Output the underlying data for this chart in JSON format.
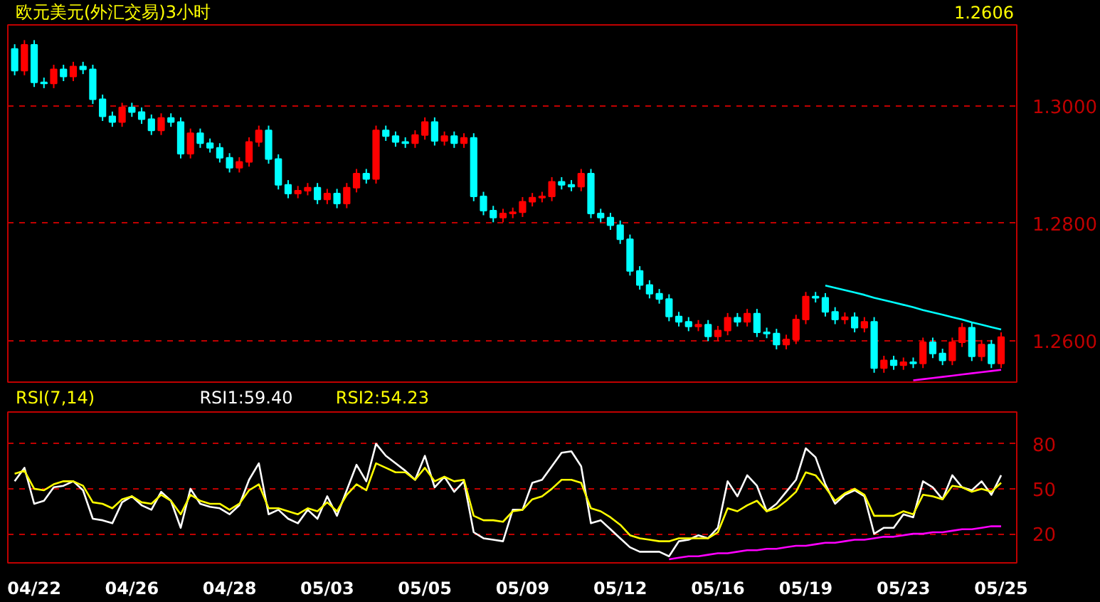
{
  "chart_data": [
    {
      "type": "candlestick",
      "title": "欧元美元(外汇交易)3小时",
      "ohlc": [
        [
          1.3098,
          1.3106,
          1.3053,
          1.3061
        ],
        [
          1.3061,
          1.3113,
          1.3053,
          1.3105
        ],
        [
          1.3105,
          1.3113,
          1.3033,
          1.3041
        ],
        [
          1.3041,
          1.3049,
          1.3031,
          1.3039
        ],
        [
          1.3039,
          1.3071,
          1.3031,
          1.3063
        ],
        [
          1.3063,
          1.3071,
          1.3043,
          1.3051
        ],
        [
          1.3051,
          1.3076,
          1.3043,
          1.3068
        ],
        [
          1.3068,
          1.3076,
          1.3055,
          1.3063
        ],
        [
          1.3063,
          1.3071,
          1.3004,
          1.3012
        ],
        [
          1.3012,
          1.302,
          1.2975,
          1.2983
        ],
        [
          1.2983,
          1.2991,
          1.2965,
          1.2973
        ],
        [
          1.2973,
          1.3006,
          1.2965,
          1.2998
        ],
        [
          1.2998,
          1.3006,
          1.2982,
          1.299
        ],
        [
          1.299,
          1.2998,
          1.297,
          1.2978
        ],
        [
          1.2978,
          1.2986,
          1.2951,
          1.2959
        ],
        [
          1.2959,
          1.2988,
          1.2951,
          1.298
        ],
        [
          1.298,
          1.2988,
          1.2965,
          1.2973
        ],
        [
          1.2973,
          1.2981,
          1.2911,
          1.2919
        ],
        [
          1.2919,
          1.2962,
          1.2911,
          1.2954
        ],
        [
          1.2954,
          1.2962,
          1.2929,
          1.2937
        ],
        [
          1.2937,
          1.2945,
          1.2921,
          1.2929
        ],
        [
          1.2929,
          1.2937,
          1.2904,
          1.2912
        ],
        [
          1.2912,
          1.292,
          1.2887,
          1.2895
        ],
        [
          1.2895,
          1.2913,
          1.2887,
          1.2905
        ],
        [
          1.2905,
          1.2947,
          1.2897,
          1.2939
        ],
        [
          1.2939,
          1.2967,
          1.2931,
          1.2959
        ],
        [
          1.2959,
          1.2967,
          1.2902,
          1.291
        ],
        [
          1.291,
          1.2918,
          1.2858,
          1.2866
        ],
        [
          1.2866,
          1.2874,
          1.2843,
          1.2851
        ],
        [
          1.2851,
          1.2864,
          1.2843,
          1.2856
        ],
        [
          1.2856,
          1.2869,
          1.2848,
          1.2861
        ],
        [
          1.2861,
          1.2869,
          1.2833,
          1.2841
        ],
        [
          1.2841,
          1.2859,
          1.2833,
          1.2851
        ],
        [
          1.2851,
          1.2859,
          1.2826,
          1.2834
        ],
        [
          1.2834,
          1.2869,
          1.2826,
          1.2861
        ],
        [
          1.2861,
          1.2893,
          1.2853,
          1.2885
        ],
        [
          1.2885,
          1.2893,
          1.2868,
          1.2876
        ],
        [
          1.2876,
          1.2967,
          1.2868,
          1.2959
        ],
        [
          1.2959,
          1.2967,
          1.2941,
          1.2949
        ],
        [
          1.2949,
          1.2957,
          1.2931,
          1.2939
        ],
        [
          1.2939,
          1.2947,
          1.2929,
          1.2937
        ],
        [
          1.2937,
          1.2959,
          1.2929,
          1.2951
        ],
        [
          1.2951,
          1.2981,
          1.2943,
          1.2973
        ],
        [
          1.2973,
          1.2981,
          1.2933,
          1.2941
        ],
        [
          1.2941,
          1.2957,
          1.2933,
          1.2949
        ],
        [
          1.2949,
          1.2957,
          1.2929,
          1.2937
        ],
        [
          1.2937,
          1.2954,
          1.2929,
          1.2946
        ],
        [
          1.2946,
          1.2954,
          1.2838,
          1.2846
        ],
        [
          1.2846,
          1.2854,
          1.2814,
          1.2822
        ],
        [
          1.2822,
          1.283,
          1.2802,
          1.281
        ],
        [
          1.281,
          1.2825,
          1.2802,
          1.2817
        ],
        [
          1.2817,
          1.2827,
          1.2809,
          1.2819
        ],
        [
          1.2819,
          1.2845,
          1.2811,
          1.2837
        ],
        [
          1.2837,
          1.2852,
          1.2829,
          1.2844
        ],
        [
          1.2844,
          1.2854,
          1.2836,
          1.2846
        ],
        [
          1.2846,
          1.2879,
          1.2838,
          1.2871
        ],
        [
          1.2871,
          1.2879,
          1.2858,
          1.2866
        ],
        [
          1.2866,
          1.2874,
          1.2855,
          1.2863
        ],
        [
          1.2863,
          1.2893,
          1.2855,
          1.2885
        ],
        [
          1.2885,
          1.2893,
          1.2809,
          1.2817
        ],
        [
          1.2817,
          1.2825,
          1.2802,
          1.281
        ],
        [
          1.281,
          1.2818,
          1.2789,
          1.2797
        ],
        [
          1.2797,
          1.2805,
          1.2765,
          1.2773
        ],
        [
          1.2773,
          1.2781,
          1.2711,
          1.2719
        ],
        [
          1.2719,
          1.2727,
          1.2687,
          1.2695
        ],
        [
          1.2695,
          1.2703,
          1.2672,
          1.268
        ],
        [
          1.268,
          1.2688,
          1.2663,
          1.2671
        ],
        [
          1.2671,
          1.2679,
          1.2633,
          1.2641
        ],
        [
          1.2641,
          1.2649,
          1.2624,
          1.2632
        ],
        [
          1.2632,
          1.264,
          1.2616,
          1.2624
        ],
        [
          1.2624,
          1.2635,
          1.2616,
          1.2627
        ],
        [
          1.2627,
          1.2635,
          1.2599,
          1.2607
        ],
        [
          1.2607,
          1.2625,
          1.2599,
          1.2617
        ],
        [
          1.2617,
          1.2647,
          1.2609,
          1.2639
        ],
        [
          1.2639,
          1.2647,
          1.2624,
          1.2632
        ],
        [
          1.2632,
          1.2654,
          1.2624,
          1.2646
        ],
        [
          1.2646,
          1.2654,
          1.2606,
          1.2614
        ],
        [
          1.2614,
          1.2622,
          1.2604,
          1.2612
        ],
        [
          1.2612,
          1.262,
          1.2585,
          1.2593
        ],
        [
          1.2593,
          1.261,
          1.2585,
          1.2602
        ],
        [
          1.2602,
          1.2644,
          1.2594,
          1.2636
        ],
        [
          1.2636,
          1.2683,
          1.2628,
          1.2675
        ],
        [
          1.2675,
          1.2683,
          1.2665,
          1.2673
        ],
        [
          1.2673,
          1.2681,
          1.2641,
          1.2649
        ],
        [
          1.2649,
          1.2657,
          1.2628,
          1.2636
        ],
        [
          1.2636,
          1.2648,
          1.2628,
          1.264
        ],
        [
          1.264,
          1.2648,
          1.2614,
          1.2622
        ],
        [
          1.2622,
          1.264,
          1.2614,
          1.2632
        ],
        [
          1.2632,
          1.264,
          1.2545,
          1.2553
        ],
        [
          1.2553,
          1.2574,
          1.2545,
          1.2566
        ],
        [
          1.2566,
          1.2574,
          1.255,
          1.2558
        ],
        [
          1.2558,
          1.2571,
          1.255,
          1.2563
        ],
        [
          1.2563,
          1.2571,
          1.2553,
          1.2561
        ],
        [
          1.2561,
          1.2605,
          1.2553,
          1.2597
        ],
        [
          1.2597,
          1.2605,
          1.257,
          1.2578
        ],
        [
          1.2578,
          1.2586,
          1.2558,
          1.2566
        ],
        [
          1.2566,
          1.2605,
          1.2558,
          1.2597
        ],
        [
          1.2597,
          1.263,
          1.2589,
          1.2622
        ],
        [
          1.2622,
          1.263,
          1.2565,
          1.2573
        ],
        [
          1.2573,
          1.2601,
          1.2565,
          1.2593
        ],
        [
          1.2593,
          1.2601,
          1.2553,
          1.2561
        ],
        [
          1.2561,
          1.2614,
          1.2553,
          1.2606
        ]
      ],
      "colors": [
        "#00ffff",
        "#ff0000",
        "#00ffff",
        "#00ffff",
        "#ff0000",
        "#00ffff",
        "#ff0000",
        "#00ffff",
        "#00ffff",
        "#00ffff",
        "#00ffff",
        "#ff0000",
        "#00ffff",
        "#00ffff",
        "#00ffff",
        "#ff0000",
        "#00ffff",
        "#00ffff",
        "#ff0000",
        "#00ffff",
        "#00ffff",
        "#00ffff",
        "#00ffff",
        "#ff0000",
        "#ff0000",
        "#ff0000",
        "#00ffff",
        "#00ffff",
        "#00ffff",
        "#ff0000",
        "#ff0000",
        "#00ffff",
        "#ff0000",
        "#00ffff",
        "#ff0000",
        "#ff0000",
        "#00ffff",
        "#ff0000",
        "#00ffff",
        "#00ffff",
        "#00ffff",
        "#ff0000",
        "#ff0000",
        "#00ffff",
        "#ff0000",
        "#00ffff",
        "#ff0000",
        "#00ffff",
        "#00ffff",
        "#00ffff",
        "#ff0000",
        "#ff0000",
        "#ff0000",
        "#ff0000",
        "#ff0000",
        "#ff0000",
        "#00ffff",
        "#00ffff",
        "#ff0000",
        "#00ffff",
        "#00ffff",
        "#00ffff",
        "#00ffff",
        "#00ffff",
        "#00ffff",
        "#00ffff",
        "#00ffff",
        "#00ffff",
        "#00ffff",
        "#00ffff",
        "#ff0000",
        "#00ffff",
        "#ff0000",
        "#ff0000",
        "#00ffff",
        "#ff0000",
        "#00ffff",
        "#00ffff",
        "#00ffff",
        "#ff0000",
        "#ff0000",
        "#ff0000",
        "#00ffff",
        "#00ffff",
        "#00ffff",
        "#ff0000",
        "#00ffff",
        "#ff0000",
        "#00ffff",
        "#ff0000",
        "#00ffff",
        "#ff0000",
        "#00ffff",
        "#ff0000",
        "#00ffff",
        "#00ffff",
        "#ff0000",
        "#ff0000",
        "#00ffff",
        "#ff0000",
        "#00ffff",
        "#ff0000"
      ],
      "series": [
        {
          "type": "line",
          "color": "#00ffff",
          "values": [
            null,
            null,
            null,
            null,
            null,
            null,
            null,
            null,
            null,
            null,
            null,
            null,
            null,
            null,
            null,
            null,
            null,
            null,
            null,
            null,
            null,
            null,
            null,
            null,
            null,
            null,
            null,
            null,
            null,
            null,
            null,
            null,
            null,
            null,
            null,
            null,
            null,
            null,
            null,
            null,
            null,
            null,
            null,
            null,
            null,
            null,
            null,
            null,
            null,
            null,
            null,
            null,
            null,
            null,
            null,
            null,
            null,
            null,
            null,
            null,
            null,
            null,
            null,
            null,
            null,
            null,
            null,
            null,
            null,
            null,
            null,
            null,
            null,
            null,
            null,
            null,
            null,
            null,
            null,
            null,
            null,
            null,
            null,
            1.2694,
            1.269,
            1.2686,
            1.2682,
            1.2678,
            1.2673,
            1.2669,
            1.2665,
            1.2661,
            1.2657,
            1.2652,
            1.2648,
            1.2644,
            1.264,
            1.2636,
            1.2631,
            1.2627,
            1.2623,
            1.2619
          ]
        },
        {
          "type": "line",
          "color": "#ff00ff",
          "values": [
            null,
            null,
            null,
            null,
            null,
            null,
            null,
            null,
            null,
            null,
            null,
            null,
            null,
            null,
            null,
            null,
            null,
            null,
            null,
            null,
            null,
            null,
            null,
            null,
            null,
            null,
            null,
            null,
            null,
            null,
            null,
            null,
            null,
            null,
            null,
            null,
            null,
            null,
            null,
            null,
            null,
            null,
            null,
            null,
            null,
            null,
            null,
            null,
            null,
            null,
            null,
            null,
            null,
            null,
            null,
            null,
            null,
            null,
            null,
            null,
            null,
            null,
            null,
            null,
            null,
            null,
            null,
            null,
            null,
            null,
            null,
            null,
            null,
            null,
            null,
            null,
            null,
            null,
            null,
            null,
            null,
            null,
            null,
            null,
            null,
            null,
            null,
            null,
            null,
            null,
            null,
            null,
            1.2532,
            1.2534,
            1.2536,
            1.2538,
            1.254,
            1.2542,
            1.2544,
            1.2546,
            1.2548,
            1.255
          ]
        }
      ],
      "ylim": [
        1.2529,
        1.3139
      ],
      "yticks": [
        {
          "value": 1.3,
          "label": "1.3000"
        },
        {
          "value": 1.28,
          "label": "1.2800"
        },
        {
          "value": 1.26,
          "label": "1.2600"
        }
      ],
      "grid": "y",
      "tick_labels": "y",
      "annotations": [
        "1.2606"
      ]
    },
    {
      "type": "line",
      "title": "RSI(7,14)",
      "categories": [
        null,
        null,
        "04/22",
        null,
        null,
        null,
        null,
        null,
        null,
        null,
        null,
        null,
        "04/26",
        null,
        null,
        null,
        null,
        null,
        null,
        null,
        null,
        null,
        "04/28",
        null,
        null,
        null,
        null,
        null,
        null,
        null,
        null,
        null,
        "05/03",
        null,
        null,
        null,
        null,
        null,
        null,
        null,
        null,
        null,
        "05/05",
        null,
        null,
        null,
        null,
        null,
        null,
        null,
        null,
        null,
        "05/09",
        null,
        null,
        null,
        null,
        null,
        null,
        null,
        null,
        null,
        "05/12",
        null,
        null,
        null,
        null,
        null,
        null,
        null,
        null,
        null,
        "05/16",
        null,
        null,
        null,
        null,
        null,
        null,
        null,
        null,
        "05/19",
        null,
        null,
        null,
        null,
        null,
        null,
        null,
        null,
        null,
        "05/23",
        null,
        null,
        null,
        null,
        null,
        null,
        null,
        null,
        null,
        "05/25"
      ],
      "series": [
        {
          "name": "RSI1:59.40",
          "color": "#ffffff",
          "values": [
            55,
            64,
            40,
            42,
            51,
            52,
            55,
            49,
            30,
            29,
            27,
            41,
            45,
            39,
            36,
            48,
            42,
            24,
            50,
            40,
            38,
            37,
            33,
            39,
            56,
            67,
            33,
            36,
            30,
            27,
            36,
            30,
            45,
            32,
            49,
            66,
            55,
            80,
            72,
            67,
            62,
            56,
            72,
            51,
            58,
            48,
            55,
            21,
            17,
            16,
            15,
            36,
            36,
            54,
            56,
            65,
            74,
            75,
            65,
            27,
            29,
            23,
            17,
            11,
            8,
            8,
            8,
            5,
            15,
            16,
            19,
            17,
            24,
            55,
            45,
            59,
            52,
            35,
            40,
            48,
            56,
            77,
            71,
            53,
            40,
            46,
            49,
            45,
            20,
            24,
            24,
            33,
            31,
            55,
            51,
            43,
            59,
            51,
            49,
            55,
            46,
            59
          ]
        },
        {
          "name": "RSI2:54.23",
          "color": "#ffff00",
          "values": [
            60,
            62,
            50,
            49,
            53,
            55,
            55,
            52,
            41,
            40,
            37,
            43,
            45,
            41,
            40,
            46,
            42,
            33,
            46,
            42,
            40,
            40,
            36,
            40,
            49,
            53,
            37,
            37,
            35,
            33,
            37,
            35,
            41,
            35,
            46,
            53,
            49,
            67,
            64,
            61,
            61,
            56,
            64,
            55,
            58,
            55,
            56,
            32,
            29,
            29,
            28,
            35,
            36,
            43,
            45,
            50,
            56,
            56,
            54,
            37,
            35,
            31,
            26,
            19,
            17,
            16,
            15,
            15,
            17,
            17,
            17,
            17,
            21,
            37,
            35,
            39,
            42,
            35,
            37,
            42,
            48,
            61,
            59,
            51,
            42,
            47,
            50,
            46,
            32,
            32,
            32,
            35,
            33,
            46,
            45,
            43,
            52,
            51,
            48,
            50,
            48,
            54
          ]
        },
        {
          "type": "line",
          "color": "#ff00ff",
          "values": [
            null,
            null,
            null,
            null,
            null,
            null,
            null,
            null,
            null,
            null,
            null,
            null,
            null,
            null,
            null,
            null,
            null,
            null,
            null,
            null,
            null,
            null,
            null,
            null,
            null,
            null,
            null,
            null,
            null,
            null,
            null,
            null,
            null,
            null,
            null,
            null,
            null,
            null,
            null,
            null,
            null,
            null,
            null,
            null,
            null,
            null,
            null,
            null,
            null,
            null,
            null,
            null,
            null,
            null,
            null,
            null,
            null,
            null,
            null,
            null,
            null,
            null,
            null,
            null,
            null,
            null,
            null,
            3,
            4,
            5,
            5,
            6,
            7,
            7,
            8,
            9,
            9,
            10,
            10,
            11,
            12,
            12,
            13,
            14,
            14,
            15,
            16,
            16,
            17,
            18,
            18,
            19,
            20,
            20,
            21,
            21,
            22,
            23,
            23,
            24,
            25,
            25
          ]
        }
      ],
      "ylim": [
        0.6,
        101.2
      ],
      "yticks": [
        20,
        50,
        80
      ],
      "grid": "y",
      "legend": "top left"
    }
  ]
}
